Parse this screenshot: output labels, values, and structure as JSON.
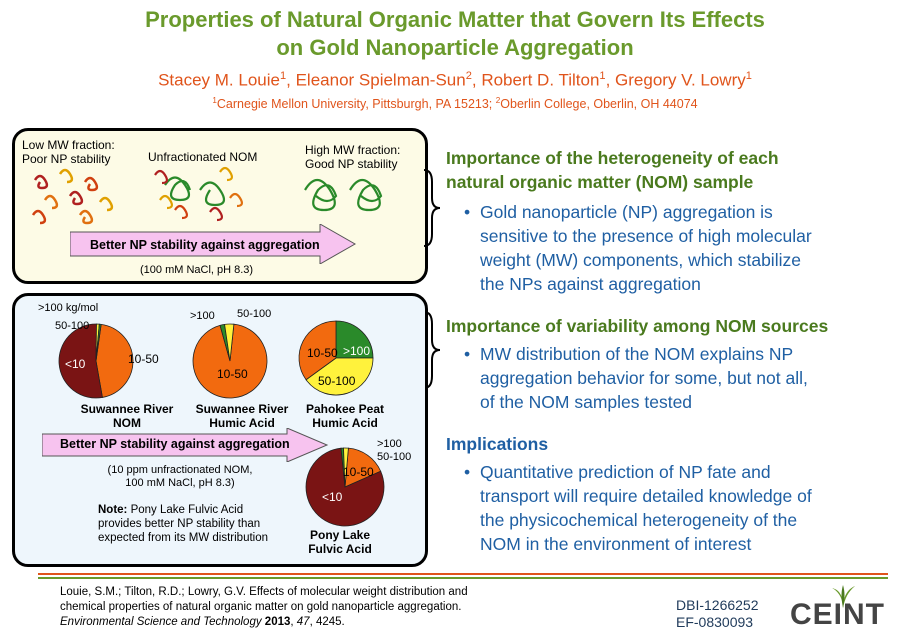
{
  "header": {
    "title_line1": "Properties of Natural Organic Matter that Govern Its Effects",
    "title_line2": "on Gold Nanoparticle Aggregation",
    "authors": [
      {
        "name": "Stacey M. Louie",
        "sup": "1"
      },
      {
        "name": "Eleanor Spielman-Sun",
        "sup": "2"
      },
      {
        "name": "Robert D. Tilton",
        "sup": "1"
      },
      {
        "name": "Gregory V. Lowry",
        "sup": "1"
      }
    ],
    "affil_sup1": "1",
    "affil1": "Carnegie Mellon University, Pittsburgh, PA 15213; ",
    "affil_sup2": "2",
    "affil2": "Oberlin College, Oberlin, OH 44074"
  },
  "panel1": {
    "low_line1": "Low MW fraction:",
    "low_line2": "Poor NP stability",
    "unfrac": "Unfractionated NOM",
    "high_line1": "High MW fraction:",
    "high_line2": "Good NP stability",
    "arrow": "Better NP stability against aggregation",
    "conditions": "(100 mM NaCl, pH 8.3)"
  },
  "panel2": {
    "arrow": "Better NP stability against aggregation",
    "cond_line1": "(10 ppm unfractionated NOM,",
    "cond_line2": "100 mM NaCl, pH 8.3)",
    "note_label": "Note:",
    "note_line1": " Pony Lake Fulvic Acid",
    "note_line2": "provides better NP stability than",
    "note_line3": "expected from its MW distribution",
    "colors": {
      "lt10": "#7a1414",
      "10to50": "#f26a0f",
      "50to100": "#fff23c",
      "gt100": "#2a8a2a"
    },
    "pies": [
      {
        "name_line1": "Suwannee River",
        "name_line2": "NOM",
        "slices": [
          {
            "label": "<10",
            "value": 53
          },
          {
            "label": "10-50",
            "value": 45
          },
          {
            "label": "50-100",
            "value": 1.2
          },
          {
            "label": ">100 kg/mol",
            "value": 0.8
          }
        ]
      },
      {
        "name_line1": "Suwannee River",
        "name_line2": "Humic Acid",
        "slices": [
          {
            "label": "10-50",
            "value": 94
          },
          {
            "label": "50-100",
            "value": 4
          },
          {
            "label": ">100",
            "value": 2
          }
        ]
      },
      {
        "name_line1": "Pahokee Peat",
        "name_line2": "Humic Acid",
        "slices": [
          {
            "label": ">100",
            "value": 25
          },
          {
            "label": "50-100",
            "value": 40
          },
          {
            "label": "10-50",
            "value": 35
          }
        ]
      },
      {
        "name_line1": "Pony Lake",
        "name_line2": "Fulvic Acid",
        "slices": [
          {
            "label": "<10",
            "value": 80
          },
          {
            "label": "10-50",
            "value": 17
          },
          {
            "label": "50-100",
            "value": 2
          },
          {
            "label": ">100",
            "value": 1
          }
        ]
      }
    ]
  },
  "sections": [
    {
      "heading_line1": "Importance of the heterogeneity of each",
      "heading_line2": "natural organic matter (NOM) sample",
      "bullet_lines": [
        "Gold nanoparticle (NP) aggregation is",
        "sensitive to the presence of high molecular",
        "weight (MW) components, which stabilize",
        "the NPs against aggregation"
      ]
    },
    {
      "heading_line1": "Importance of variability among NOM sources",
      "bullet_lines": [
        "MW distribution of the NOM explains NP",
        "aggregation behavior for some, but not all,",
        "of the NOM samples tested"
      ]
    },
    {
      "heading_line1": "Implications",
      "bullet_lines": [
        "Quantitative prediction of NP fate and",
        "transport will require detailed knowledge of",
        "the physicochemical heterogeneity of the",
        "NOM in the environment of interest"
      ]
    }
  ],
  "reference": {
    "line1": "Louie, S.M.; Tilton, R.D.; Lowry, G.V.  Effects of molecular weight distribution and",
    "line2": "chemical properties of natural organic matter on gold nanoparticle aggregation.",
    "journal": "Environmental Science and Technology",
    "year": "2013",
    "volume": "47",
    "pages": ", 4245."
  },
  "grants": {
    "line1": "DBI-1266252",
    "line2": "EF-0830093"
  },
  "logo": {
    "text": "CEINT"
  }
}
